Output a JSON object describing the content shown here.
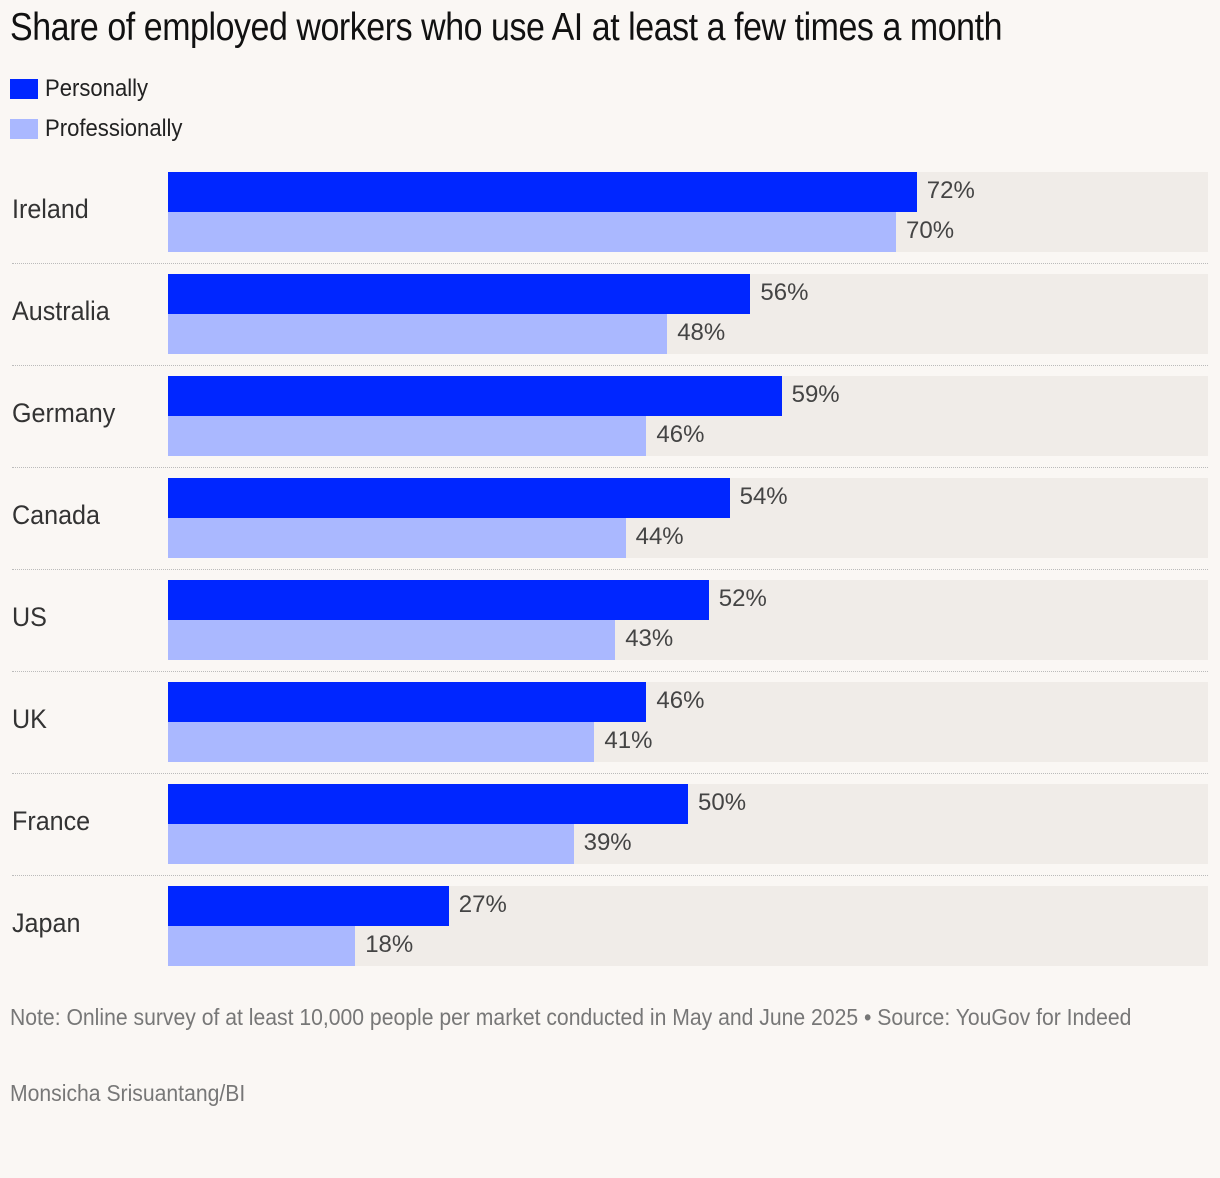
{
  "chart_data": {
    "type": "bar",
    "orientation": "horizontal",
    "title": "Share of employed workers who use AI at least a few times a month",
    "categories": [
      "Ireland",
      "Australia",
      "Germany",
      "Canada",
      "US",
      "UK",
      "France",
      "Japan"
    ],
    "series": [
      {
        "name": "Personally",
        "color": "#0026ff",
        "values": [
          72,
          56,
          59,
          54,
          52,
          46,
          50,
          27
        ]
      },
      {
        "name": "Professionally",
        "color": "#aab8ff",
        "values": [
          70,
          48,
          46,
          44,
          43,
          41,
          39,
          18
        ]
      }
    ],
    "value_suffix": "%",
    "xlim": [
      0,
      100
    ],
    "grid": false,
    "legend_position": "top-left",
    "note": "Note: Online survey of at least 10,000 people per market conducted in May and June 2025 • Source: YouGov for Indeed",
    "credit": "Monsicha Srisuantang/BI"
  },
  "colors": {
    "background": "#faf7f4",
    "track": "#f0ece8"
  }
}
